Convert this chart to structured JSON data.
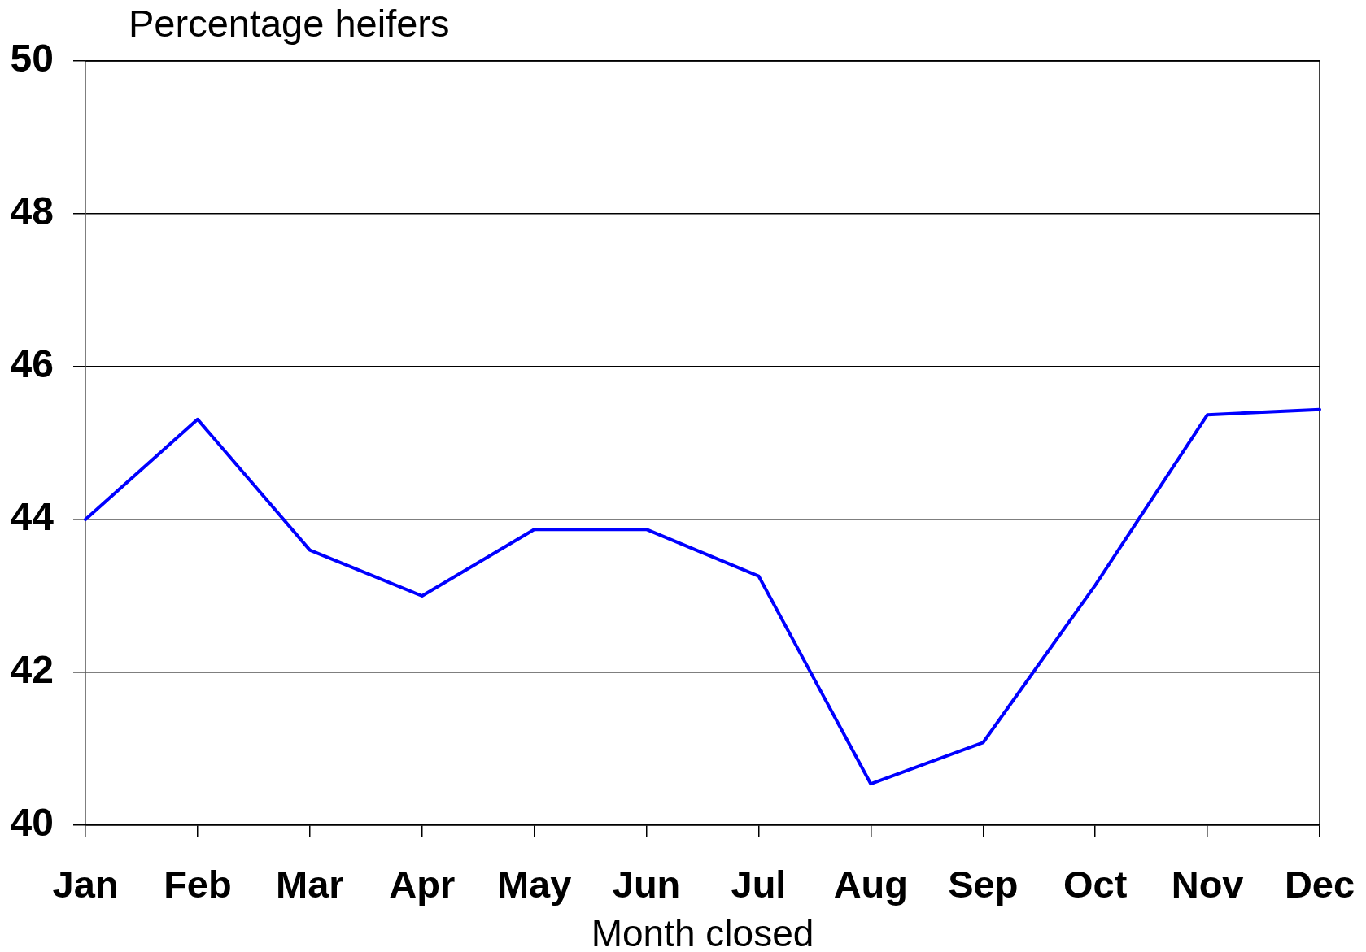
{
  "chart_data": {
    "type": "line",
    "ylabel": "Percentage heifers",
    "xlabel": "Month closed",
    "categories": [
      "Jan",
      "Feb",
      "Mar",
      "Apr",
      "May",
      "Jun",
      "Jul",
      "Aug",
      "Sep",
      "Oct",
      "Nov",
      "Dec"
    ],
    "series": [
      {
        "color": "#0000ff",
        "values": [
          44.0,
          45.31,
          43.6,
          43.0,
          43.87,
          43.87,
          43.26,
          40.54,
          41.08,
          43.14,
          45.37,
          45.44
        ]
      }
    ],
    "ylim": [
      40,
      50
    ],
    "yticks": [
      40,
      42,
      44,
      46,
      48,
      50
    ],
    "grid": "y",
    "marker": "none"
  }
}
